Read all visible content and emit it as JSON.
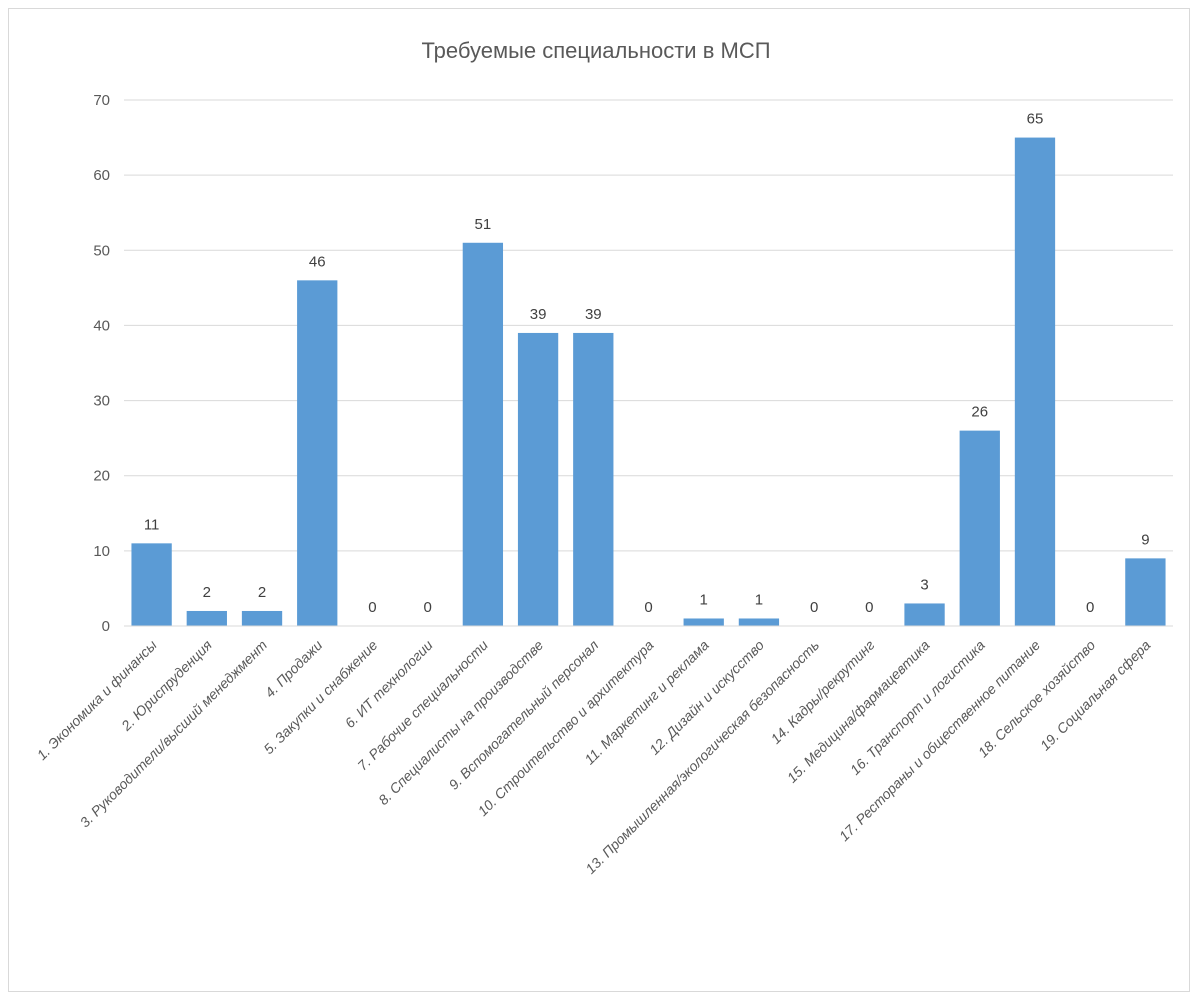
{
  "chart_data": {
    "type": "bar",
    "title": "Требуемые специальности в МСП",
    "xlabel": "",
    "ylabel": "",
    "ylim": [
      0,
      70
    ],
    "yticks": [
      0,
      10,
      20,
      30,
      40,
      50,
      60,
      70
    ],
    "grid": true,
    "legend": "none",
    "bar_color": "#5b9bd5",
    "categories": [
      "1. Экономика и финансы",
      "2. Юриспруденция",
      "3. Руководители/высший менеджмент",
      "4. Продажи",
      "5. Закупки и снабжение",
      "6. ИТ технологии",
      "7. Рабочие специальности",
      "8. Специалисты на производстве",
      "9. Вспомогательный персонал",
      "10. Строительство и архитектура",
      "11. Маркетинг и реклама",
      "12. Дизайн и искусство",
      "13. Промышленная/экологическая безопасность",
      "14. Кадры/рекрутинг",
      "15. Медицина/фармацевтика",
      "16. Транспорт и логистика",
      "17. Рестораны и общественное питание",
      "18. Сельское хозяйство",
      "19. Социальная сфера"
    ],
    "values": [
      11,
      2,
      2,
      46,
      0,
      0,
      51,
      39,
      39,
      0,
      1,
      1,
      0,
      0,
      3,
      26,
      65,
      0,
      9
    ]
  }
}
